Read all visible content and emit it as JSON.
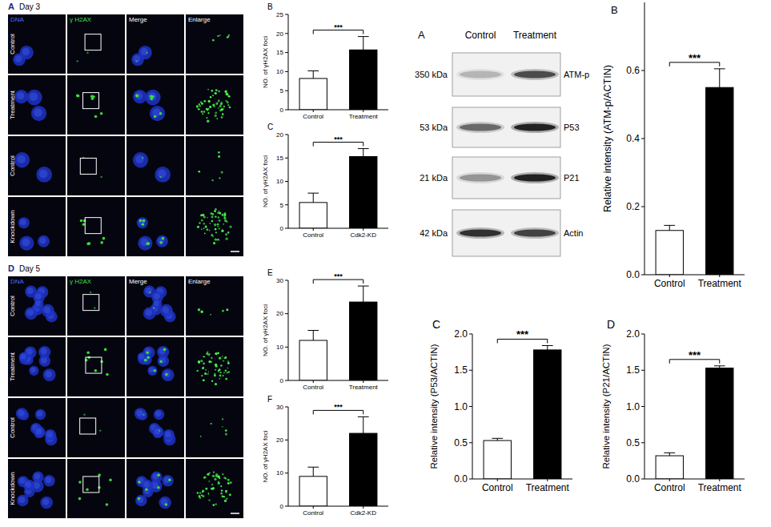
{
  "chart_data": [
    {
      "type": "bar",
      "title": "B",
      "ylabel": "NO. of γH2AX foci",
      "categories": [
        "Control",
        "Treatment"
      ],
      "values": [
        8.2,
        15.7
      ],
      "errors": [
        2.0,
        3.5
      ],
      "colors": [
        "#ffffff",
        "#000000"
      ],
      "ylim": [
        0,
        25
      ],
      "yticks": [
        0,
        5,
        10,
        15,
        20,
        25
      ],
      "annotation": "***",
      "grid": false
    },
    {
      "type": "bar",
      "title": "C",
      "ylabel": "NO. of γH2AX foci",
      "categories": [
        "Control",
        "Cdk2-KD"
      ],
      "values": [
        5.5,
        15.3
      ],
      "errors": [
        2.0,
        1.7
      ],
      "colors": [
        "#ffffff",
        "#000000"
      ],
      "ylim": [
        0,
        20
      ],
      "yticks": [
        0,
        5,
        10,
        15,
        20
      ],
      "annotation": "***",
      "grid": false
    },
    {
      "type": "bar",
      "title": "E",
      "ylabel": "NO. of γH2AX foci",
      "categories": [
        "Control",
        "Treatment"
      ],
      "values": [
        12,
        23.5
      ],
      "errors": [
        3.0,
        4.8
      ],
      "colors": [
        "#ffffff",
        "#000000"
      ],
      "ylim": [
        0,
        30
      ],
      "yticks": [
        0,
        10,
        20,
        30
      ],
      "annotation": "***",
      "grid": false
    },
    {
      "type": "bar",
      "title": "F",
      "ylabel": "NO. of γH2AX foci",
      "categories": [
        "Control",
        "Cdk2-KD"
      ],
      "values": [
        9,
        22
      ],
      "errors": [
        2.8,
        5.0
      ],
      "colors": [
        "#ffffff",
        "#000000"
      ],
      "ylim": [
        0,
        30
      ],
      "yticks": [
        0,
        10,
        20,
        30
      ],
      "annotation": "***",
      "grid": false
    },
    {
      "type": "bar",
      "title": "B",
      "ylabel": "Relative intensity (ATM-p/ACTIN)",
      "categories": [
        "Control",
        "Treatment"
      ],
      "values": [
        0.13,
        0.55
      ],
      "errors": [
        0.015,
        0.055
      ],
      "colors": [
        "#ffffff",
        "#000000"
      ],
      "ylim": [
        0,
        0.8
      ],
      "yticks": [
        {
          "value": 0,
          "label": "0.0"
        },
        0.2,
        0.4,
        0.6
      ],
      "annotation": "***",
      "grid": false
    },
    {
      "type": "bar",
      "title": "C",
      "ylabel": "Relative intensity (P53/ACTIN)",
      "categories": [
        "Control",
        "Treatment"
      ],
      "values": [
        0.53,
        1.78
      ],
      "errors": [
        0.03,
        0.06
      ],
      "colors": [
        "#ffffff",
        "#000000"
      ],
      "ylim": [
        0,
        2
      ],
      "yticks": [
        {
          "value": 0,
          "label": "0.0"
        },
        0.5,
        {
          "value": 1,
          "label": "1.0"
        },
        1.5,
        {
          "value": 2,
          "label": "2.0"
        }
      ],
      "annotation": "***",
      "grid": false
    },
    {
      "type": "bar",
      "title": "D",
      "ylabel": "Relative intensity (P21/ACTIN)",
      "categories": [
        "Control",
        "Treatment"
      ],
      "values": [
        0.32,
        1.53
      ],
      "errors": [
        0.04,
        0.03
      ],
      "colors": [
        "#ffffff",
        "#000000"
      ],
      "ylim": [
        0,
        2
      ],
      "yticks": [
        {
          "value": 0,
          "label": "0.0"
        },
        0.5,
        {
          "value": 1,
          "label": "1.0"
        },
        1.5,
        {
          "value": 2,
          "label": "2.0"
        }
      ],
      "annotation": "***",
      "grid": false
    }
  ],
  "microscopy": [
    {
      "title": "A",
      "subtitle": "Day 3",
      "columns": [
        "DNA",
        "γ H2AX",
        "Merge",
        "Enlarge"
      ],
      "rows": [
        "Control",
        "Treatment",
        "Control",
        "Knockdown"
      ]
    },
    {
      "title": "D",
      "subtitle": "Day 5",
      "columns": [
        "DNA",
        "γ H2AX",
        "Merge",
        "Enlarge"
      ],
      "rows": [
        "Control",
        "Treatment",
        "Control",
        "Knockdown"
      ]
    }
  ],
  "blot": {
    "title": "A",
    "lanes": [
      "Control",
      "Treatment"
    ],
    "sizes": [
      "350 kDa",
      "53 kDa",
      "21 kDa",
      "42 kDa"
    ],
    "proteins": [
      "ATM-p",
      "P53",
      "P21",
      "Actin"
    ]
  }
}
